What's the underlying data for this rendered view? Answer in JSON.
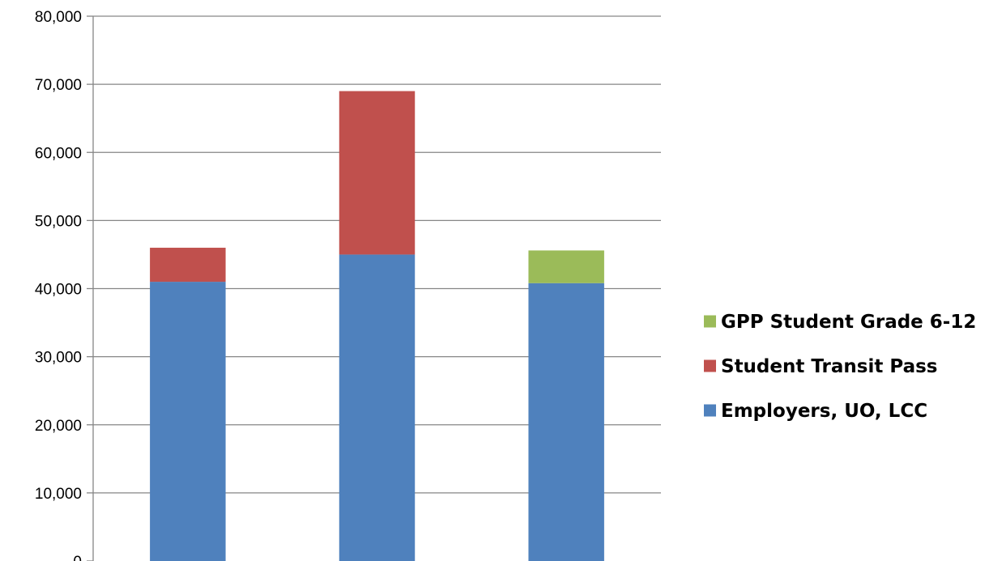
{
  "chart_data": {
    "type": "bar",
    "stacked": true,
    "categories": [
      "",
      "",
      ""
    ],
    "series": [
      {
        "name": "Employers, UO, LCC",
        "color": "#4F81BD",
        "values": [
          41000,
          45000,
          40800
        ]
      },
      {
        "name": "Student Transit Pass",
        "color": "#C0504D",
        "values": [
          5000,
          24000,
          0
        ]
      },
      {
        "name": "GPP Student Grade 6-12",
        "color": "#9BBB59",
        "values": [
          0,
          0,
          4800
        ]
      }
    ],
    "title": "",
    "xlabel": "",
    "ylabel": "",
    "ylim": [
      0,
      80000
    ],
    "y_ticks": [
      0,
      10000,
      20000,
      30000,
      40000,
      50000,
      60000,
      70000,
      80000
    ],
    "y_tick_labels": [
      "0",
      "10,000",
      "20,000",
      "30,000",
      "40,000",
      "50,000",
      "60,000",
      "70,000",
      "80,000"
    ],
    "grid": true,
    "legend": {
      "position": "right",
      "entries": [
        "GPP Student Grade 6-12",
        "Student Transit Pass",
        "Employers, UO, LCC"
      ]
    }
  }
}
